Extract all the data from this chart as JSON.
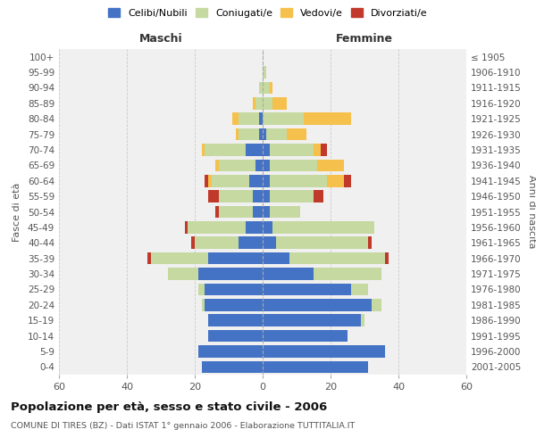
{
  "age_groups": [
    "0-4",
    "5-9",
    "10-14",
    "15-19",
    "20-24",
    "25-29",
    "30-34",
    "35-39",
    "40-44",
    "45-49",
    "50-54",
    "55-59",
    "60-64",
    "65-69",
    "70-74",
    "75-79",
    "80-84",
    "85-89",
    "90-94",
    "95-99",
    "100+"
  ],
  "birth_years": [
    "2001-2005",
    "1996-2000",
    "1991-1995",
    "1986-1990",
    "1981-1985",
    "1976-1980",
    "1971-1975",
    "1966-1970",
    "1961-1965",
    "1956-1960",
    "1951-1955",
    "1946-1950",
    "1941-1945",
    "1936-1940",
    "1931-1935",
    "1926-1930",
    "1921-1925",
    "1916-1920",
    "1911-1915",
    "1906-1910",
    "≤ 1905"
  ],
  "male": {
    "celibe": [
      18,
      19,
      16,
      16,
      17,
      17,
      19,
      16,
      7,
      5,
      3,
      3,
      4,
      2,
      5,
      1,
      1,
      0,
      0,
      0,
      0
    ],
    "coniugato": [
      0,
      0,
      0,
      0,
      1,
      2,
      9,
      17,
      13,
      17,
      10,
      10,
      11,
      11,
      12,
      6,
      6,
      2,
      1,
      0,
      0
    ],
    "vedovo": [
      0,
      0,
      0,
      0,
      0,
      0,
      0,
      0,
      0,
      0,
      0,
      0,
      1,
      1,
      1,
      1,
      2,
      1,
      0,
      0,
      0
    ],
    "divorziato": [
      0,
      0,
      0,
      0,
      0,
      0,
      0,
      1,
      1,
      1,
      1,
      3,
      1,
      0,
      0,
      0,
      0,
      0,
      0,
      0,
      0
    ]
  },
  "female": {
    "nubile": [
      31,
      36,
      25,
      29,
      32,
      26,
      15,
      8,
      4,
      3,
      2,
      2,
      2,
      2,
      2,
      1,
      0,
      0,
      0,
      0,
      0
    ],
    "coniugata": [
      0,
      0,
      0,
      1,
      3,
      5,
      20,
      28,
      27,
      30,
      9,
      13,
      17,
      14,
      13,
      6,
      12,
      3,
      2,
      1,
      0
    ],
    "vedova": [
      0,
      0,
      0,
      0,
      0,
      0,
      0,
      0,
      0,
      0,
      0,
      0,
      5,
      8,
      2,
      6,
      14,
      4,
      1,
      0,
      0
    ],
    "divorziata": [
      0,
      0,
      0,
      0,
      0,
      0,
      0,
      1,
      1,
      0,
      0,
      3,
      2,
      0,
      2,
      0,
      0,
      0,
      0,
      0,
      0
    ]
  },
  "colors": {
    "celibe": "#4472C4",
    "coniugato": "#C5D9A0",
    "vedovo": "#F5C04C",
    "divorziato": "#C0392B"
  },
  "xlim": 60,
  "title": "Popolazione per età, sesso e stato civile - 2006",
  "subtitle": "COMUNE DI TIRES (BZ) - Dati ISTAT 1° gennaio 2006 - Elaborazione TUTTITALIA.IT",
  "ylabel_left": "Fasce di età",
  "ylabel_right": "Anni di nascita",
  "xlabel_male": "Maschi",
  "xlabel_female": "Femmine",
  "legend_labels": [
    "Celibi/Nubili",
    "Coniugati/e",
    "Vedovi/e",
    "Divorziati/e"
  ],
  "bg_color": "#f0f0f0",
  "grid_color": "#cccccc"
}
